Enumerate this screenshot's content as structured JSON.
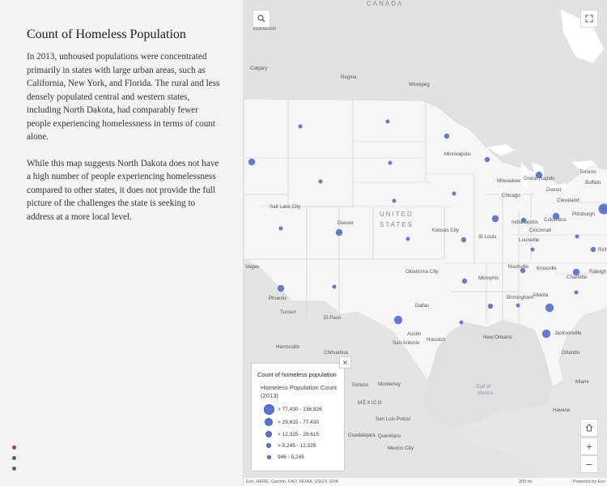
{
  "story": {
    "title": "Count of Homeless Population",
    "paragraph_1": "In 2013, unhoused populations were concentrated primarily in states with large urban areas, such as California, New York, and Florida. The rural and less densely populated central and western states, including North Dakota, had comparably fewer people experiencing homelessness in terms of count alone.",
    "paragraph_2": "While this map suggests North Dakota does not have a high number of people experiencing homelessness compared to other states, it does not provide the full picture of the challenges the state is seeking to address at a more local level."
  },
  "nav": {
    "dots": 3,
    "active_index": 0,
    "active_color": "#b43a3a",
    "inactive_color": "#3f6e5f"
  },
  "map": {
    "symbol_color": "#5b74cf",
    "labels": {
      "canada": "CANADA",
      "united": "UNITED",
      "states": "STATES",
      "mexico": "MÉXICO",
      "gulf": "Gulf of",
      "gulf2": "Mexico",
      "cities": [
        "Edmonton",
        "Calgary",
        "Regina",
        "Winnipeg",
        "Minneapolis",
        "Milwaukee",
        "Grand Rapids",
        "Toronto",
        "Buffalo",
        "Detroit",
        "Chicago",
        "Cleveland",
        "Pittsburgh",
        "Indianapolis",
        "Columbus",
        "Cincinnati",
        "Louisville",
        "Richi",
        "Salt Lake City",
        "Denver",
        "Kansas City",
        "St Louis",
        "Nashville",
        "Knoxville",
        "Raleigh",
        "Charlotte",
        "Vegas",
        "Oklahoma City",
        "Memphis",
        "Atlanta",
        "Birmingham",
        "Phoenix",
        "Tucson",
        "El Paso",
        "Dallas",
        "Austin",
        "Houston",
        "San Antonio",
        "New Orleans",
        "Jacksonville",
        "Orlando",
        "Hermosillo",
        "Chihuahua",
        "Torreón",
        "Monterrey",
        "San Luis Potosí",
        "Guadalajara",
        "Querétaro",
        "Mexico City",
        "Havana",
        "Miami"
      ]
    },
    "points": [
      {
        "state": "WA",
        "level": 3
      },
      {
        "state": "OR",
        "level": 3
      },
      {
        "state": "MT",
        "level": 1
      },
      {
        "state": "ID",
        "level": 1
      },
      {
        "state": "WY",
        "level": 1
      },
      {
        "state": "ND",
        "level": 1
      },
      {
        "state": "SD",
        "level": 1
      },
      {
        "state": "NE",
        "level": 1
      },
      {
        "state": "UT",
        "level": 1
      },
      {
        "state": "CO",
        "level": 3
      },
      {
        "state": "KS",
        "level": 1
      },
      {
        "state": "AZ",
        "level": 3
      },
      {
        "state": "NM",
        "level": 1
      },
      {
        "state": "OK",
        "level": 2
      },
      {
        "state": "TX",
        "level": 4
      },
      {
        "state": "MN",
        "level": 2
      },
      {
        "state": "IA",
        "level": 1
      },
      {
        "state": "MO",
        "level": 2
      },
      {
        "state": "AR",
        "level": 1
      },
      {
        "state": "LA",
        "level": 2
      },
      {
        "state": "MS",
        "level": 1
      },
      {
        "state": "WI",
        "level": 2
      },
      {
        "state": "IL",
        "level": 3
      },
      {
        "state": "MI",
        "level": 3
      },
      {
        "state": "IN",
        "level": 2
      },
      {
        "state": "OH",
        "level": 3
      },
      {
        "state": "KY",
        "level": 1
      },
      {
        "state": "TN",
        "level": 2
      },
      {
        "state": "AL",
        "level": 1
      },
      {
        "state": "GA",
        "level": 4
      },
      {
        "state": "FL",
        "level": 4
      },
      {
        "state": "SC",
        "level": 1
      },
      {
        "state": "NC",
        "level": 3
      },
      {
        "state": "VA",
        "level": 2
      },
      {
        "state": "WV",
        "level": 1
      },
      {
        "state": "PA",
        "level": 3
      },
      {
        "state": "NY",
        "level": 5
      }
    ]
  },
  "legend": {
    "heading": "Count of homeless population",
    "subtitle": "Homeless Population Count (2013)",
    "classes": [
      "> 77,430 - 136,826",
      "> 29,615 - 77,430",
      "> 12,325 - 29,615",
      "> 5,245 - 12,325",
      "946 - 5,245"
    ],
    "close_label": "×"
  },
  "controls": {
    "search_icon": "search-icon",
    "fullscreen_icon": "expand-icon",
    "home_icon": "home-icon",
    "zoom_in_label": "+",
    "zoom_out_label": "−"
  },
  "attribution": {
    "left": "Esri, HERE, Garmin, FAO, NOAA, USGS, EPA",
    "scale": "200 mi",
    "right": "Powered by Esri"
  }
}
